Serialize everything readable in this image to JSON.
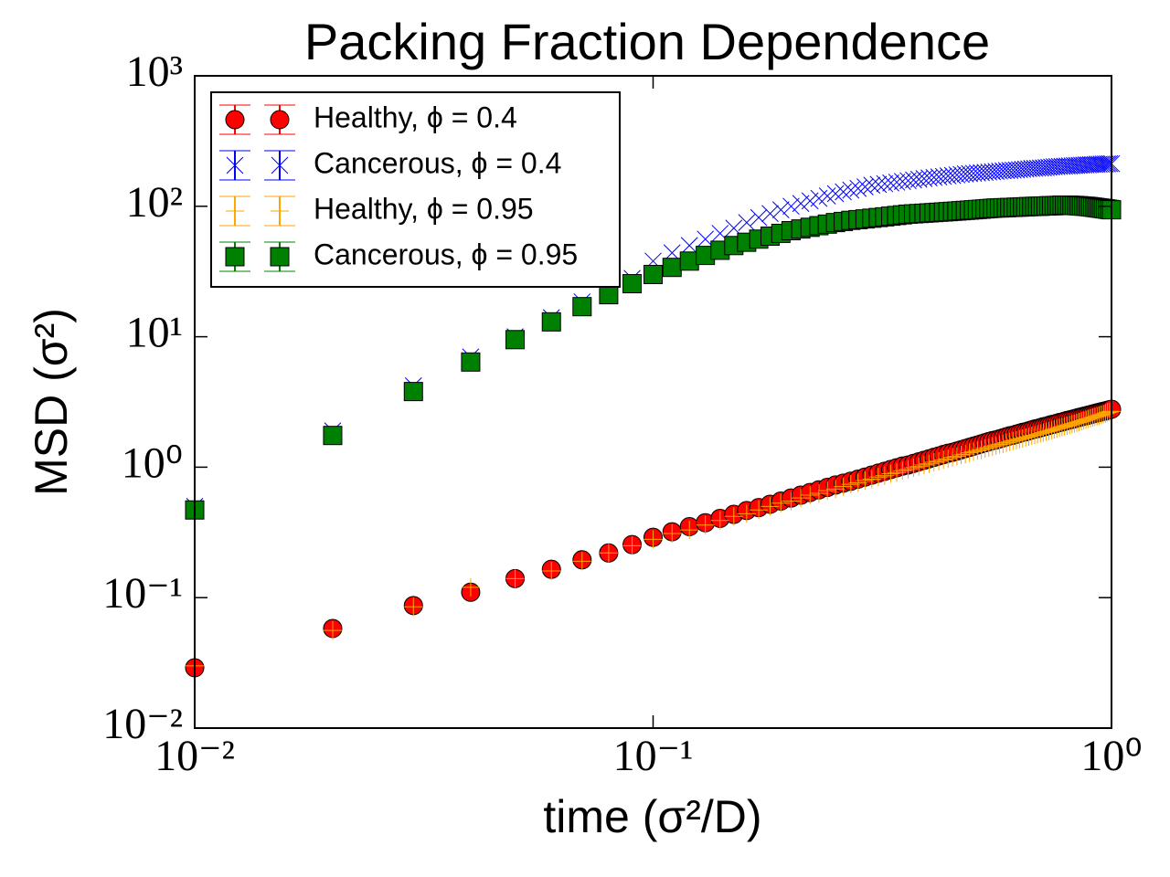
{
  "chart_data": {
    "type": "scatter",
    "title": "Packing Fraction Dependence",
    "xlabel": "time (σ²/D)",
    "ylabel": "MSD (σ²)",
    "xscale": "log",
    "yscale": "log",
    "xlim": [
      0.01,
      1
    ],
    "ylim": [
      0.01,
      1000
    ],
    "xticks": [
      {
        "value": 0.01,
        "label": "10⁻²"
      },
      {
        "value": 0.1,
        "label": "10⁻¹"
      },
      {
        "value": 1,
        "label": "10⁰"
      }
    ],
    "yticks": [
      {
        "value": 0.01,
        "label": "10⁻²"
      },
      {
        "value": 0.1,
        "label": "10⁻¹"
      },
      {
        "value": 1,
        "label": "10⁰"
      },
      {
        "value": 10,
        "label": "10¹"
      },
      {
        "value": 100,
        "label": "10²"
      },
      {
        "value": 1000,
        "label": "10³"
      }
    ],
    "legend": "upper left",
    "x": [
      0.01,
      0.02,
      0.03,
      0.04,
      0.05,
      0.06,
      0.07,
      0.08,
      0.09,
      0.1,
      0.11,
      0.12,
      0.13,
      0.14,
      0.15,
      0.16,
      0.17,
      0.18,
      0.19,
      0.2,
      0.21,
      0.22,
      0.23,
      0.24,
      0.25,
      0.26,
      0.27,
      0.28,
      0.29,
      0.3,
      0.31,
      0.32,
      0.33,
      0.34,
      0.35,
      0.36,
      0.37,
      0.38,
      0.39,
      0.4,
      0.41,
      0.42,
      0.43,
      0.44,
      0.45,
      0.46,
      0.47,
      0.48,
      0.49,
      0.5,
      0.51,
      0.52,
      0.53,
      0.54,
      0.55,
      0.56,
      0.57,
      0.58,
      0.59,
      0.6,
      0.61,
      0.62,
      0.63,
      0.64,
      0.65,
      0.66,
      0.67,
      0.68,
      0.69,
      0.7,
      0.71,
      0.72,
      0.73,
      0.74,
      0.75,
      0.76,
      0.77,
      0.78,
      0.79,
      0.8,
      0.81,
      0.82,
      0.83,
      0.84,
      0.85,
      0.86,
      0.87,
      0.88,
      0.89,
      0.9,
      0.91,
      0.92,
      0.93,
      0.94,
      0.95,
      0.96,
      0.97,
      0.98,
      0.99,
      1
    ],
    "series": [
      {
        "name": "Healthy, ϕ = 0.4",
        "color": "red",
        "marker": "circle",
        "values": [
          0.029,
          0.058,
          0.087,
          0.11,
          0.14,
          0.165,
          0.195,
          0.22,
          0.255,
          0.29,
          0.32,
          0.35,
          0.375,
          0.405,
          0.435,
          0.465,
          0.49,
          0.52,
          0.55,
          0.58,
          0.61,
          0.64,
          0.67,
          0.7,
          0.73,
          0.755,
          0.78,
          0.81,
          0.84,
          0.87,
          0.9,
          0.93,
          0.96,
          0.99,
          1.02,
          1.04,
          1.07,
          1.1,
          1.13,
          1.16,
          1.19,
          1.22,
          1.25,
          1.28,
          1.3,
          1.33,
          1.36,
          1.39,
          1.42,
          1.45,
          1.48,
          1.51,
          1.54,
          1.57,
          1.6,
          1.62,
          1.65,
          1.68,
          1.71,
          1.74,
          1.76,
          1.79,
          1.82,
          1.85,
          1.87,
          1.9,
          1.93,
          1.96,
          1.98,
          2.01,
          2.04,
          2.06,
          2.09,
          2.12,
          2.14,
          2.17,
          2.2,
          2.22,
          2.25,
          2.28,
          2.3,
          2.33,
          2.35,
          2.38,
          2.41,
          2.43,
          2.46,
          2.48,
          2.51,
          2.53,
          2.56,
          2.58,
          2.61,
          2.63,
          2.66,
          2.68,
          2.7,
          2.73,
          2.75,
          2.78
        ]
      },
      {
        "name": "Cancerous, ϕ = 0.4",
        "color": "blue",
        "marker": "x",
        "values": [
          0.5,
          1.9,
          4.2,
          7,
          10,
          14,
          18.5,
          23,
          28,
          38,
          44,
          50,
          56,
          62,
          68,
          75,
          82,
          88,
          94,
          100,
          105,
          110,
          115,
          120,
          125,
          129,
          133,
          137,
          141,
          145,
          147,
          149,
          151,
          153,
          155,
          157,
          159,
          161,
          163,
          165,
          166.5,
          168,
          169.5,
          171,
          172.5,
          174,
          175.5,
          177,
          178,
          179,
          180,
          181,
          182,
          183,
          184,
          185,
          186,
          187,
          188,
          188.5,
          189,
          190,
          191,
          192,
          193,
          194,
          195,
          195.5,
          196,
          196.5,
          197,
          198,
          199,
          200,
          201,
          201.5,
          202,
          202.5,
          203,
          203.5,
          204,
          204.5,
          205,
          205.5,
          206,
          206.5,
          207,
          207.5,
          208,
          208.5,
          209,
          209.5,
          210,
          210,
          210.5,
          211,
          211,
          211.5,
          212,
          212
        ]
      },
      {
        "name": "Healthy, ϕ = 0.95",
        "color": "orange",
        "marker": "plus",
        "values": [
          0.03,
          0.056,
          0.085,
          0.12,
          0.14,
          0.16,
          0.19,
          0.22,
          0.25,
          0.28,
          0.31,
          0.33,
          0.36,
          0.39,
          0.42,
          0.44,
          0.47,
          0.5,
          0.53,
          0.55,
          0.58,
          0.61,
          0.63,
          0.66,
          0.68,
          0.71,
          0.74,
          0.76,
          0.79,
          0.81,
          0.84,
          0.86,
          0.89,
          0.91,
          0.94,
          0.96,
          0.99,
          1.01,
          1.04,
          1.06,
          1.09,
          1.11,
          1.14,
          1.16,
          1.19,
          1.21,
          1.24,
          1.26,
          1.29,
          1.31,
          1.34,
          1.36,
          1.39,
          1.41,
          1.44,
          1.46,
          1.49,
          1.51,
          1.54,
          1.56,
          1.59,
          1.61,
          1.64,
          1.66,
          1.69,
          1.71,
          1.74,
          1.76,
          1.79,
          1.81,
          1.84,
          1.87,
          1.89,
          1.92,
          1.95,
          1.97,
          2,
          2.03,
          2.05,
          2.08,
          2.11,
          2.14,
          2.16,
          2.19,
          2.22,
          2.25,
          2.28,
          2.31,
          2.34,
          2.37,
          2.4,
          2.43,
          2.46,
          2.49,
          2.52,
          2.55,
          2.58,
          2.62,
          2.65,
          2.68
        ]
      },
      {
        "name": "Cancerous, ϕ = 0.95",
        "color": "green",
        "marker": "square",
        "values": [
          0.47,
          1.75,
          3.8,
          6.4,
          9.5,
          13,
          17,
          21,
          25.5,
          30,
          34,
          38,
          42,
          46,
          50,
          53,
          56,
          59,
          62,
          65,
          67,
          69,
          71,
          73,
          75,
          76.5,
          78,
          79,
          80,
          81,
          82,
          83,
          84,
          85,
          86,
          87,
          87.5,
          88,
          88.5,
          89,
          89.5,
          90,
          90.5,
          91,
          91.5,
          92,
          92.5,
          93,
          93.5,
          94,
          94.5,
          95,
          95.5,
          96,
          96.5,
          97,
          97,
          97.5,
          97.5,
          98,
          98,
          98.5,
          98.5,
          99,
          99,
          99.5,
          99.5,
          100,
          100,
          100,
          100.5,
          100.5,
          101,
          101,
          101,
          101.5,
          101.5,
          102,
          102,
          102,
          102,
          101.5,
          101.5,
          101,
          101,
          100.5,
          100,
          100,
          99.5,
          99,
          98.5,
          98,
          97.5,
          97,
          96.5,
          96,
          95.5,
          95,
          94.5,
          94
        ]
      }
    ]
  }
}
